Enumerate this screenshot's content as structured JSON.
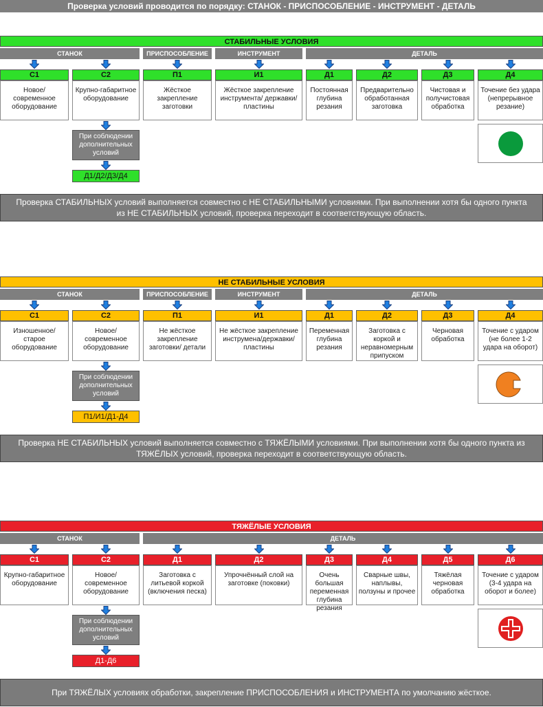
{
  "header": {
    "title": "Проверка условий проводится по порядку: СТАНОК - ПРИСПОСОБЛЕНИЕ - ИНСТРУМЕНТ - ДЕТАЛЬ"
  },
  "sections": [
    {
      "title": "СТАБИЛЬНЫЕ УСЛОВИЯ",
      "groups": [
        "СТАНОК",
        "ПРИСПОСОБЛЕНИЕ",
        "ИНСТРУМЕНТ",
        "ДЕТАЛЬ"
      ],
      "cards": [
        {
          "code": "С1",
          "text": "Новое/ современное оборудование"
        },
        {
          "code": "С2",
          "text": "Крупно-габаритное оборудование"
        },
        {
          "code": "П1",
          "text": "Жёсткое закрепление заготовки"
        },
        {
          "code": "И1",
          "text": "Жёсткое закрепление инструмента/ державки/ пластины"
        },
        {
          "code": "Д1",
          "text": "Постоянная глубина резания"
        },
        {
          "code": "Д2",
          "text": "Предварительно обработанная заготовка"
        },
        {
          "code": "Д3",
          "text": "Чистовая и получистовая обработка"
        },
        {
          "code": "Д4",
          "text": "Точение без удара (непрерывное резание)"
        }
      ],
      "extra": "При соблюдении дополнительных условий",
      "result": "Д1/Д2/Д3/Д4",
      "note": "Проверка СТАБИЛЬНЫХ условий выполняется совместно с НЕ СТАБИЛЬНЫМИ условиями. При выполнении хотя бы одного пункта из НЕ СТАБИЛЬНЫХ условий, проверка переходит в соответствующую область."
    },
    {
      "title": "НЕ СТАБИЛЬНЫЕ УСЛОВИЯ",
      "groups": [
        "СТАНОК",
        "ПРИСПОСОБЛЕНИЕ",
        "ИНСТРУМЕНТ",
        "ДЕТАЛЬ"
      ],
      "cards": [
        {
          "code": "С1",
          "text": "Изношенное/ старое оборудование"
        },
        {
          "code": "С2",
          "text": "Новое/ современное оборудование"
        },
        {
          "code": "П1",
          "text": "Не жёсткое закрепление заготовки/ детали"
        },
        {
          "code": "И1",
          "text": "Не жёсткое закрепление инструмена/державки/ пластины"
        },
        {
          "code": "Д1",
          "text": "Переменная глубина резания"
        },
        {
          "code": "Д2",
          "text": "Заготовка с коркой и неравномерным припуском"
        },
        {
          "code": "Д3",
          "text": "Черновая обработка"
        },
        {
          "code": "Д4",
          "text": "Точение с ударом (не более 1-2 удара на оборот)"
        }
      ],
      "extra": "При соблюдении дополнительных условий",
      "result": "П1/И1/Д1-Д4",
      "note": "Проверка НЕ СТАБИЛЬНЫХ  условий выполняется совместно с ТЯЖЁЛЫМИ условиями. При выполнении хотя бы одного пункта из ТЯЖЁЛЫХ условий, проверка переходит в соответствующую область."
    },
    {
      "title": "ТЯЖЁЛЫЕ УСЛОВИЯ",
      "groups": [
        "СТАНОК",
        "ДЕТАЛЬ"
      ],
      "cards": [
        {
          "code": "С1",
          "text": "Крупно-габаритное оборудование"
        },
        {
          "code": "С2",
          "text": "Новое/ современное оборудование"
        },
        {
          "code": "Д1",
          "text": "Заготовка с литьевой коркой (включения песка)"
        },
        {
          "code": "Д2",
          "text": "Упрочнённый слой на заготовке (поковки)"
        },
        {
          "code": "Д3",
          "text": "Очень большая переменная глубина резания"
        },
        {
          "code": "Д4",
          "text": "Сварные швы, наплывы, ползуны и прочее"
        },
        {
          "code": "Д5",
          "text": "Тяжёлая черновая обработка"
        },
        {
          "code": "Д6",
          "text": "Точение с ударом (3-4 удара на оборот и более)"
        }
      ],
      "extra": "При соблюдении дополнительных условий",
      "result": "Д1-Д6",
      "note": "При ТЯЖЁЛЫХ условиях обработки, закрепление  ПРИСПОСОБЛЕНИЯ и ИНСТРУМЕНТА по умолчанию жёсткое."
    }
  ]
}
